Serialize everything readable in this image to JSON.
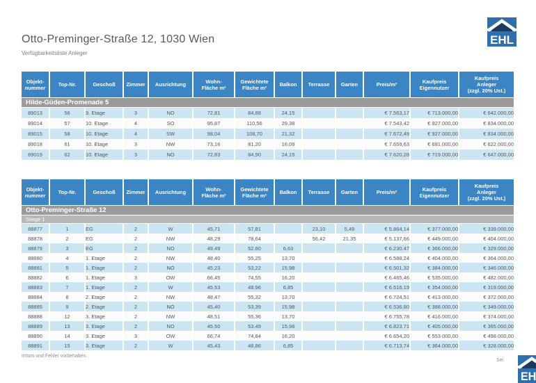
{
  "page": {
    "title": "Otto-Preminger-Straße 12, 1030 Wien",
    "subtitle": "Verfügbarkeitsliste Anleger",
    "footer_left": "Irrtum und Fehler vorbehalten.",
    "footer_right": "Sei",
    "logo_text": "EHL"
  },
  "colors": {
    "header_blue": "#3c85c4",
    "section_gray": "#9b9b9b",
    "subsection_gray": "#b7b7b7",
    "row_blue": "#cce5f3",
    "row_white": "#fbfbfb",
    "logo_blue": "#2e6fae",
    "logo_navy": "#1d3a5e",
    "text_gray": "#55565a"
  },
  "columns": [
    "Objekt-\nnummer",
    "Top-Nr.",
    "Geschoß",
    "Zimmer",
    "Ausrichtung",
    "Wohn-\nFläche m²",
    "Gewichtete\nFläche m²",
    "Balkon",
    "Terrasse",
    "Garten",
    "Preis/m²",
    "Kaufpreis\nEigennutzer",
    "Kaufpreis\nAnleger\n(zzgl. 20% Ust.)"
  ],
  "tables": [
    {
      "section": "Hilde-Güden-Promenade 5",
      "rows": [
        [
          "89013",
          "56",
          "9. Etage",
          "3",
          "NO",
          "72,81",
          "84,88",
          "24,15",
          "",
          "",
          "€ 7.563,17",
          "€ 713.000,00",
          "€ 642.000,00"
        ],
        [
          "89014",
          "57",
          "10. Etage",
          "4",
          "SO",
          "95,87",
          "110,56",
          "29,38",
          "",
          "",
          "€ 7.543,42",
          "€ 927.000,00",
          "€ 834.000,00"
        ],
        [
          "89015",
          "58",
          "10. Etage",
          "4",
          "SW",
          "98,04",
          "108,70",
          "21,32",
          "",
          "",
          "€ 7.672,49",
          "€ 927.000,00",
          "€ 834.000,00"
        ],
        [
          "89018",
          "61",
          "10. Etage",
          "3",
          "NW",
          "73,16",
          "81,20",
          "16,09",
          "",
          "",
          "€ 7.659,63",
          "€ 691.000,00",
          "€ 622.000,00"
        ],
        [
          "89019",
          "62",
          "10. Etage",
          "3",
          "NO",
          "72,83",
          "84,90",
          "24,15",
          "",
          "",
          "€ 7.620,28",
          "€ 719.000,00",
          "€ 647.000,00"
        ]
      ]
    },
    {
      "section": "Otto-Preminger-Straße 12",
      "subsection": "Stiege 1",
      "rows": [
        [
          "88877",
          "1",
          "EG",
          "2",
          "W",
          "45,71",
          "57,81",
          "",
          "23,10",
          "5,49",
          "€ 5.864,14",
          "€ 377.000,00",
          "€ 339.000,00"
        ],
        [
          "88878",
          "2",
          "EG",
          "2",
          "NW",
          "48,29",
          "78,64",
          "",
          "56,42",
          "21,35",
          "€ 5.137,66",
          "€ 449.000,00",
          "€ 404.000,00"
        ],
        [
          "88879",
          "3",
          "EG",
          "2",
          "NO",
          "49,49",
          "52,80",
          "6,63",
          "",
          "",
          "€ 6.230,47",
          "€ 366.000,00",
          "€ 329.000,00"
        ],
        [
          "88880",
          "4",
          "1. Etage",
          "2",
          "NW",
          "48,40",
          "55,25",
          "13,70",
          "",
          "",
          "€ 6.588,24",
          "€ 404.000,00",
          "€ 364.000,00"
        ],
        [
          "88881",
          "5",
          "1. Etage",
          "2",
          "NO",
          "45,23",
          "53,22",
          "15,98",
          "",
          "",
          "€ 6.501,32",
          "€ 384.000,00",
          "€ 346.000,00"
        ],
        [
          "88882",
          "6",
          "1. Etage",
          "3",
          "OW",
          "66,45",
          "74,55",
          "16,20",
          "",
          "",
          "€ 6.465,46",
          "€ 535.000,00",
          "€ 482.000,00"
        ],
        [
          "88883",
          "7",
          "1. Etage",
          "2",
          "W",
          "45,53",
          "48,96",
          "6,85",
          "",
          "",
          "€ 6.516,19",
          "€ 354.000,00",
          "€ 319.000,00"
        ],
        [
          "88884",
          "8",
          "2. Etage",
          "2",
          "NW",
          "48,47",
          "55,32",
          "13,70",
          "",
          "",
          "€ 6.724,51",
          "€ 413.000,00",
          "€ 372.000,00"
        ],
        [
          "88885",
          "9",
          "2. Etage",
          "2",
          "NO",
          "45,40",
          "53,39",
          "15,98",
          "",
          "",
          "€ 6.536,80",
          "€ 388.000,00",
          "€ 349.000,00"
        ],
        [
          "88888",
          "12",
          "3. Etage",
          "2",
          "NW",
          "48,51",
          "55,36",
          "13,70",
          "",
          "",
          "€ 6.755,78",
          "€ 416.000,00",
          "€ 374.000,00"
        ],
        [
          "88889",
          "13",
          "3. Etage",
          "2",
          "NO",
          "45,50",
          "53,49",
          "15,98",
          "",
          "",
          "€ 6.823,71",
          "€ 405.000,00",
          "€ 365.000,00"
        ],
        [
          "88890",
          "14",
          "3. Etage",
          "3",
          "OW",
          "66,74",
          "74,84",
          "16,20",
          "",
          "",
          "€ 6.654,20",
          "€ 553.000,00",
          "€ 498.000,00"
        ],
        [
          "88891",
          "15",
          "3. Etage",
          "2",
          "W",
          "45,43",
          "48,86",
          "6,85",
          "",
          "",
          "€ 6.713,74",
          "€ 364.000,00",
          "€ 328.000,00"
        ]
      ]
    }
  ]
}
